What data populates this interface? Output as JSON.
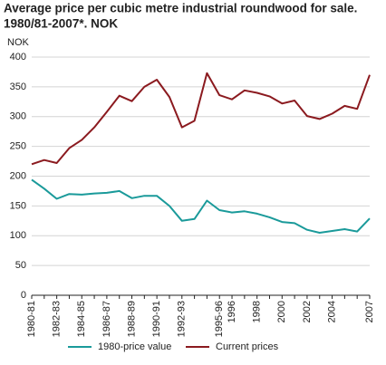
{
  "chart_data": {
    "type": "line",
    "title": [
      "Average price per cubic metre industrial roundwood for sale.",
      "1980/81-2007*. NOK"
    ],
    "y_label": "NOK",
    "categories": [
      "1980-81",
      null,
      "1982-83",
      null,
      "1984-85",
      null,
      "1986-87",
      null,
      "1988-89",
      null,
      "1990-91",
      null,
      "1992-93",
      null,
      null,
      "1995-96",
      "1996",
      null,
      "1998",
      null,
      "2000",
      null,
      "2002",
      null,
      "2004",
      null,
      null,
      "2007"
    ],
    "series": [
      {
        "name": "1980-price value",
        "color": "#1a9a9a",
        "values": [
          194,
          179,
          162,
          170,
          169,
          171,
          172,
          175,
          163,
          167,
          167,
          150,
          125,
          128,
          159,
          143,
          139,
          141,
          137,
          131,
          123,
          121,
          110,
          105,
          108,
          111,
          107,
          129
        ]
      },
      {
        "name": "Current prices",
        "color": "#8b1a1f",
        "values": [
          220,
          227,
          222,
          247,
          261,
          282,
          308,
          335,
          326,
          350,
          362,
          333,
          282,
          293,
          373,
          336,
          329,
          344,
          340,
          334,
          322,
          327,
          301,
          296,
          305,
          318,
          313,
          370
        ]
      }
    ],
    "ylim": [
      0,
      400
    ],
    "yticks": [
      0,
      50,
      100,
      150,
      200,
      250,
      300,
      350,
      400
    ],
    "grid": true,
    "legend": "bottom"
  }
}
